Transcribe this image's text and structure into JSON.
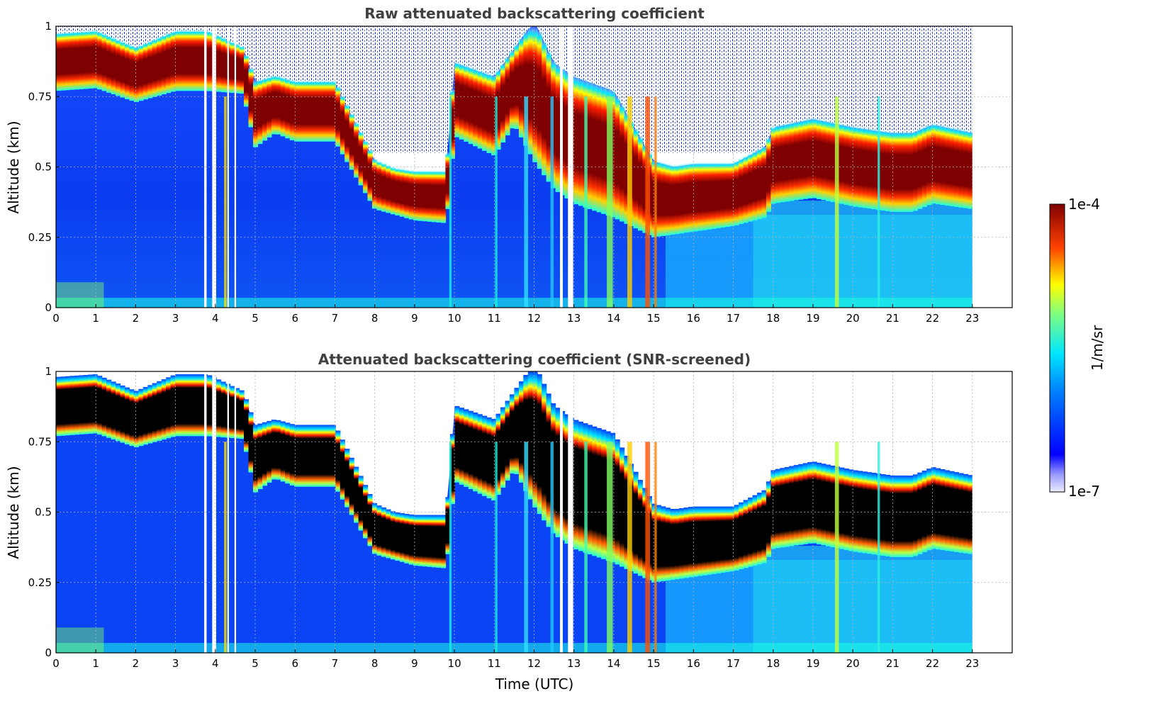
{
  "chart_data": [
    {
      "type": "heatmap",
      "title": "Raw attenuated backscattering coefficient",
      "xlabel": "",
      "ylabel": "Altitude (km)",
      "xlim": [
        0,
        24
      ],
      "ylim": [
        0,
        1
      ],
      "xticks": [
        "0",
        "1",
        "2",
        "3",
        "4",
        "5",
        "6",
        "7",
        "8",
        "9",
        "10",
        "11",
        "12",
        "13",
        "14",
        "15",
        "16",
        "17",
        "18",
        "19",
        "20",
        "21",
        "22",
        "23"
      ],
      "yticks": [
        "0",
        "0.25",
        "0.5",
        "0.75",
        "1"
      ],
      "grid": true,
      "data_end_hour": 23,
      "cloud_base_km": {
        "x": [
          0,
          1,
          2,
          2.5,
          3,
          3.8,
          4.7,
          5,
          5.5,
          6,
          7,
          8,
          8.5,
          9,
          9.8,
          10,
          11,
          11.5,
          12,
          12.5,
          13,
          14,
          15,
          15.5,
          16,
          17,
          17.8,
          18,
          19,
          20,
          21,
          21.5,
          22,
          23
        ],
        "y": [
          0.8,
          0.81,
          0.76,
          0.78,
          0.8,
          0.8,
          0.79,
          0.6,
          0.65,
          0.62,
          0.62,
          0.38,
          0.36,
          0.34,
          0.33,
          0.64,
          0.57,
          0.68,
          0.55,
          0.45,
          0.4,
          0.35,
          0.28,
          0.29,
          0.3,
          0.32,
          0.35,
          0.4,
          0.42,
          0.39,
          0.37,
          0.37,
          0.4,
          0.38
        ]
      },
      "cloud_top_km": {
        "x": [
          0,
          1,
          2,
          2.5,
          3,
          3.8,
          4.7,
          5,
          5.5,
          6,
          7,
          8,
          8.5,
          9,
          9.8,
          10,
          11,
          11.5,
          12,
          12.5,
          13,
          14,
          15,
          15.5,
          16,
          17,
          17.8,
          18,
          19,
          20,
          21,
          21.5,
          22,
          23
        ],
        "y": [
          0.95,
          0.96,
          0.9,
          0.93,
          0.96,
          0.96,
          0.9,
          0.78,
          0.8,
          0.78,
          0.78,
          0.5,
          0.47,
          0.46,
          0.46,
          0.85,
          0.8,
          0.9,
          1.0,
          0.85,
          0.8,
          0.75,
          0.5,
          0.48,
          0.49,
          0.49,
          0.55,
          0.62,
          0.65,
          0.62,
          0.6,
          0.6,
          0.63,
          0.6
        ]
      },
      "colorbar": {
        "label": "1/m/sr",
        "min_label": "1e-7",
        "max_label": "1e-4",
        "scale": "log",
        "colormap": "jet"
      }
    },
    {
      "type": "heatmap",
      "title": "Attenuated backscattering coefficient (SNR-screened)",
      "xlabel": "Time (UTC)",
      "ylabel": "Altitude (km)",
      "xlim": [
        0,
        24
      ],
      "ylim": [
        0,
        1
      ],
      "xticks": [
        "0",
        "1",
        "2",
        "3",
        "4",
        "5",
        "6",
        "7",
        "8",
        "9",
        "10",
        "11",
        "12",
        "13",
        "14",
        "15",
        "16",
        "17",
        "18",
        "19",
        "20",
        "21",
        "22",
        "23"
      ],
      "yticks": [
        "0",
        "0.25",
        "0.5",
        "0.75",
        "1"
      ],
      "grid": true,
      "data_end_hour": 23,
      "saturated_color": "#000000"
    }
  ],
  "colors": {
    "title": "#404040",
    "grid": "#b0b0b0",
    "cloud_core_raw": "#7f0000",
    "cloud_core_screened": "#000000",
    "background_signal": "#0a3cf0",
    "surface_layer": "#19ffe0"
  }
}
